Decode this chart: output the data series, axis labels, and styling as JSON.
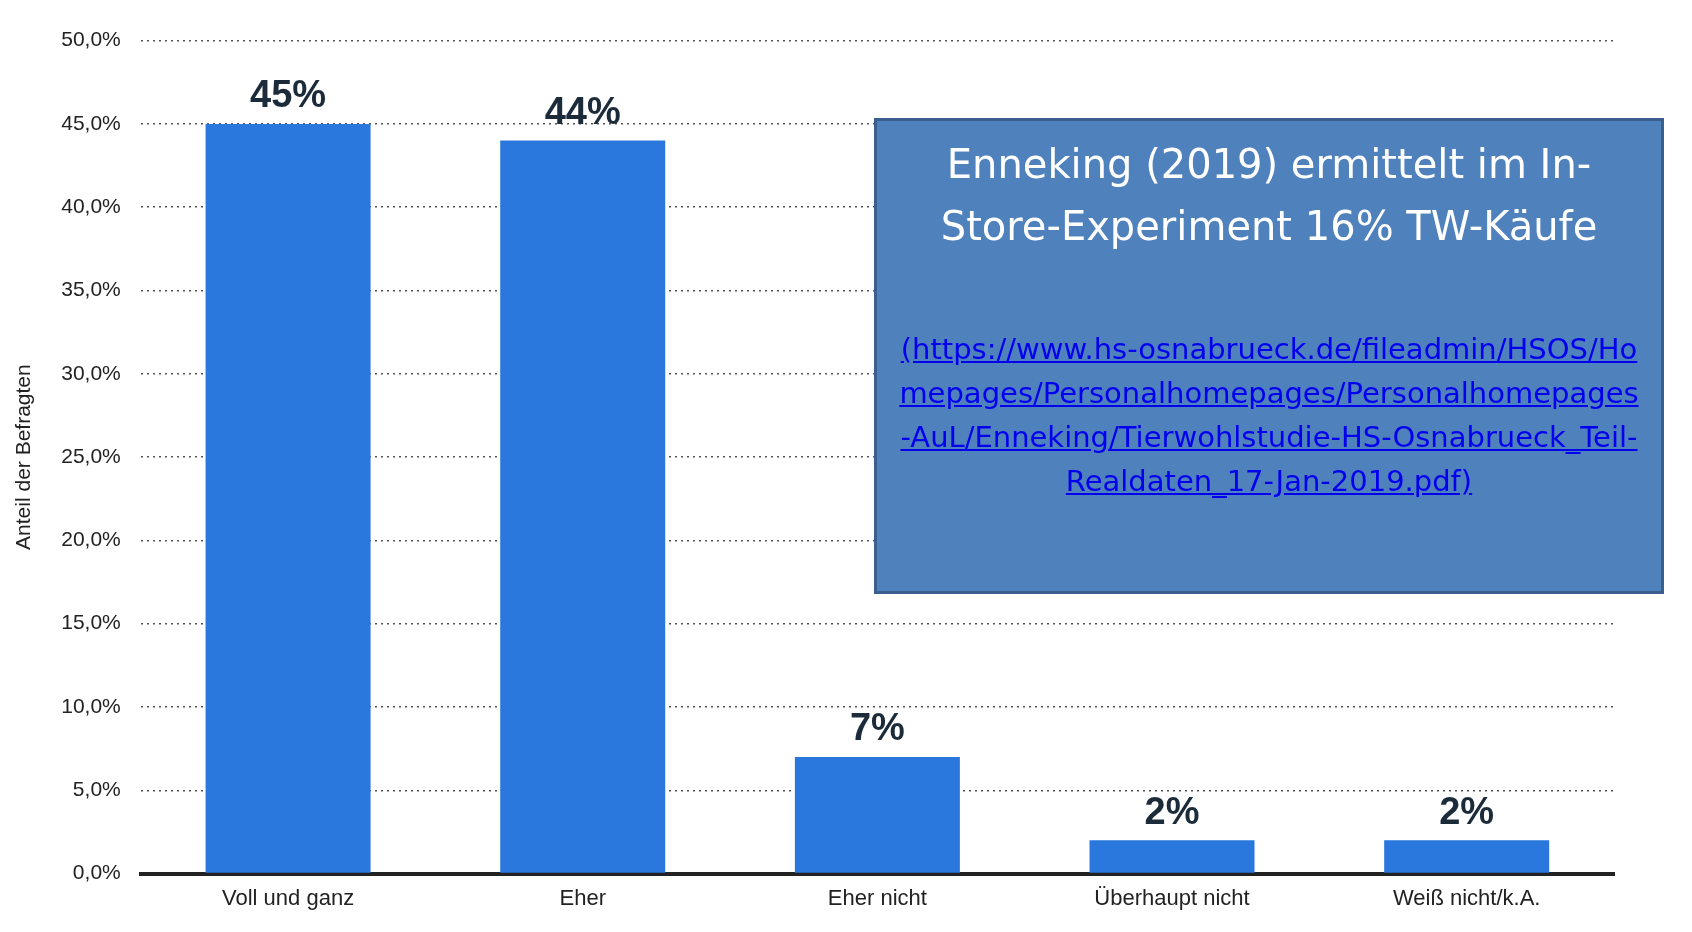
{
  "chart_data": {
    "type": "bar",
    "ylabel": "Anteil der Befragten",
    "categories": [
      "Voll und ganz",
      "Eher",
      "Eher nicht",
      "Überhaupt nicht",
      "Weiß nicht/k.A."
    ],
    "values": [
      45,
      44,
      7,
      2,
      2
    ],
    "value_labels": [
      "45%",
      "44%",
      "7%",
      "2%",
      "2%"
    ],
    "color": "#2a77dd",
    "ylim": [
      0,
      50
    ],
    "yticks": [
      {
        "value": 0,
        "label": "0,0%"
      },
      {
        "value": 5,
        "label": "5,0%"
      },
      {
        "value": 10,
        "label": "10,0%"
      },
      {
        "value": 15,
        "label": "15,0%"
      },
      {
        "value": 20,
        "label": "20,0%"
      },
      {
        "value": 25,
        "label": "25,0%"
      },
      {
        "value": 30,
        "label": "30,0%"
      },
      {
        "value": 35,
        "label": "35,0%"
      },
      {
        "value": 40,
        "label": "40,0%"
      },
      {
        "value": 45,
        "label": "45,0%"
      },
      {
        "value": 50,
        "label": "50,0%"
      }
    ],
    "grid": "y",
    "legend": false,
    "annotations": [
      "Enneking (2019) ermittelt im In-Store-Experiment 16% TW-Käufe",
      "(https://www.hs-osnabrueck.de/fileadmin/HSOS/Homepages/Personalhomepages/Personalhomepages-AuL/Enneking/Tierwohlstudie-HS-Osnabrueck_Teil-Realdaten_17-Jan-2019.pdf)"
    ]
  }
}
